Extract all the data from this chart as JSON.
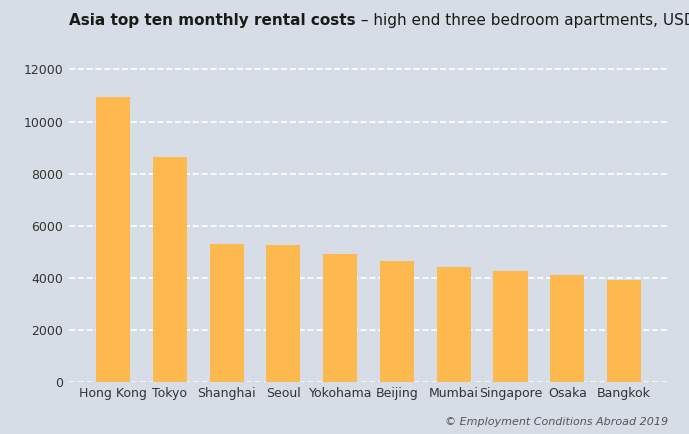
{
  "title_bold": "Asia top ten monthly rental costs",
  "title_regular": " – high end three bedroom apartments, USD",
  "categories": [
    "Hong Kong",
    "Tokyo",
    "Shanghai",
    "Seoul",
    "Yokohama",
    "Beijing",
    "Mumbai",
    "Singapore",
    "Osaka",
    "Bangkok"
  ],
  "values": [
    10950,
    8650,
    5300,
    5250,
    4900,
    4650,
    4400,
    4250,
    4100,
    3900
  ],
  "bar_color": "#FDB94D",
  "background_color": "#D6DDE6",
  "grid_color": "#FFFFFF",
  "text_color": "#1a1a1a",
  "tick_color": "#333333",
  "ylim": [
    0,
    12500
  ],
  "yticks": [
    0,
    2000,
    4000,
    6000,
    8000,
    10000,
    12000
  ],
  "footnote": "© Employment Conditions Abroad 2019",
  "title_fontsize": 11.0,
  "tick_fontsize": 9.0,
  "footnote_fontsize": 8.0
}
